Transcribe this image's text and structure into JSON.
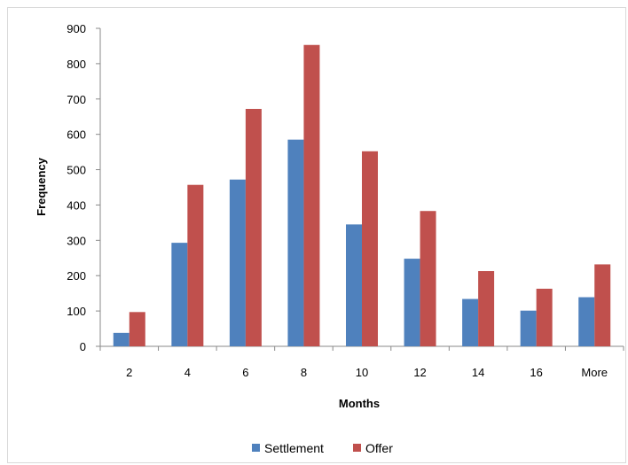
{
  "chart_data": {
    "type": "bar",
    "title": "",
    "xlabel": "Months",
    "ylabel": "Frequency",
    "categories": [
      "2",
      "4",
      "6",
      "8",
      "10",
      "12",
      "14",
      "16",
      "More"
    ],
    "series": [
      {
        "name": "Settlement",
        "color": "#4f81bd",
        "values": [
          38,
          293,
          472,
          585,
          345,
          248,
          134,
          101,
          139
        ]
      },
      {
        "name": "Offer",
        "color": "#c0504d",
        "values": [
          97,
          457,
          672,
          853,
          552,
          383,
          213,
          163,
          232
        ]
      }
    ],
    "ylim": [
      0,
      900
    ],
    "yticks": [
      0,
      100,
      200,
      300,
      400,
      500,
      600,
      700,
      800,
      900
    ],
    "grid": false,
    "legend_position": "bottom"
  }
}
